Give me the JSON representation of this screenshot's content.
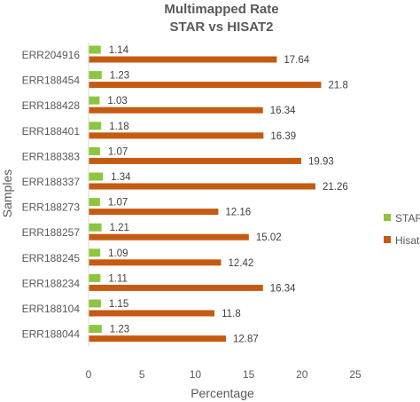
{
  "chart_data": {
    "type": "bar",
    "orientation": "horizontal",
    "title": "Multimapped Rate",
    "subtitle": "STAR vs HISAT2",
    "xlabel": "Percentage",
    "ylabel": "Samples",
    "xlim": [
      0,
      25
    ],
    "xticks": [
      "0",
      "5",
      "10",
      "15",
      "20",
      "25"
    ],
    "grid": false,
    "legend_position": "right",
    "categories": [
      "ERR204916",
      "ERR188454",
      "ERR188428",
      "ERR188401",
      "ERR188383",
      "ERR188337",
      "ERR188273",
      "ERR188257",
      "ERR188245",
      "ERR188234",
      "ERR188104",
      "ERR188044"
    ],
    "series": [
      {
        "name": "STAR",
        "color": "#8cc63f",
        "values": [
          1.14,
          1.23,
          1.03,
          1.18,
          1.07,
          1.34,
          1.07,
          1.21,
          1.09,
          1.11,
          1.15,
          1.23
        ],
        "labels": [
          "1.14",
          "1.23",
          "1.03",
          "1.18",
          "1.07",
          "1.34",
          "1.07",
          "1.21",
          "1.09",
          "1.11",
          "1.15",
          "1.23"
        ]
      },
      {
        "name": "Hisat",
        "color": "#c55a11",
        "values": [
          17.64,
          21.8,
          16.34,
          16.39,
          19.93,
          21.26,
          12.16,
          15.02,
          12.42,
          16.34,
          11.8,
          12.87
        ],
        "labels": [
          "17.64",
          "21.8",
          "16.34",
          "16.39",
          "19.93",
          "21.26",
          "12.16",
          "15.02",
          "12.42",
          "16.34",
          "11.8",
          "12.87"
        ]
      }
    ]
  }
}
